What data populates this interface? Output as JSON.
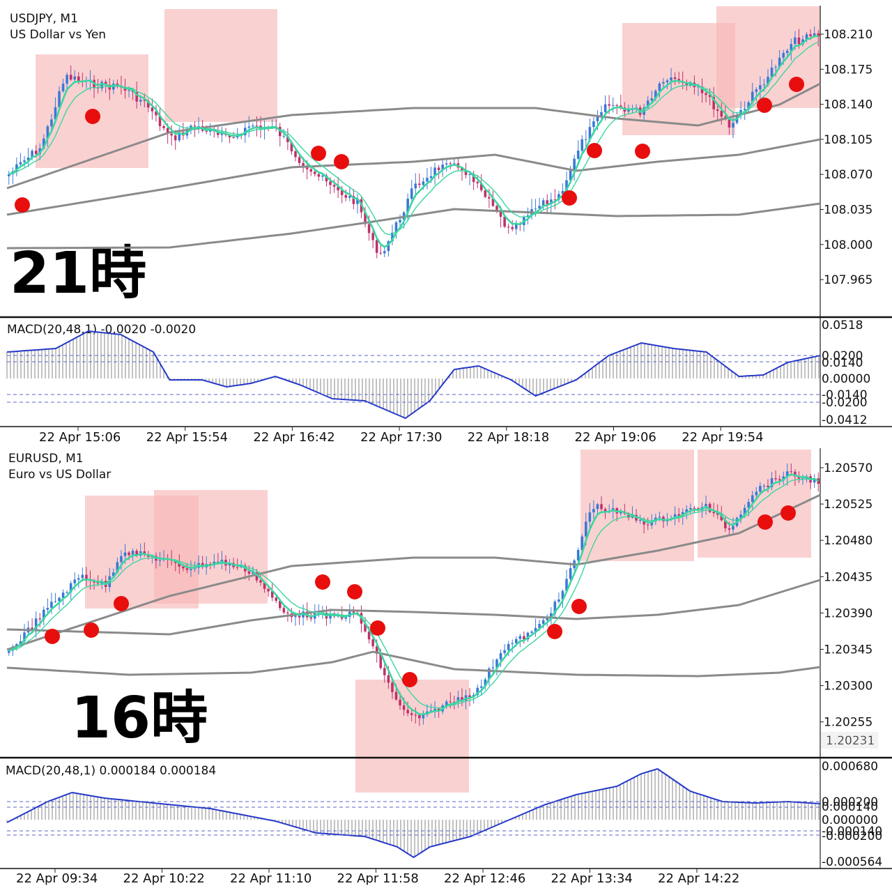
{
  "chart_data": [
    {
      "type": "candlestick",
      "symbol": "USDJPY, M1",
      "description": "US Dollar vs Yen",
      "overlay_text": "21時",
      "price_ticks": [
        "108.210",
        "108.175",
        "108.140",
        "108.105",
        "108.070",
        "108.035",
        "108.000",
        "107.965"
      ],
      "price_range": [
        107.94,
        108.24
      ],
      "macd": {
        "label": "MACD(20,48,1) -0.0020 -0.0020",
        "ticks": [
          "0.0518",
          "0.0200",
          "0.0140",
          "0.00000",
          "-0.0140",
          "-0.0200",
          "-0.0412"
        ],
        "range": [
          -0.0412,
          0.0518
        ]
      },
      "time_labels": [
        "22 Apr 15:06",
        "22 Apr 15:54",
        "22 Apr 16:42",
        "22 Apr 17:30",
        "22 Apr 18:18",
        "22 Apr 19:06",
        "22 Apr 19:54"
      ]
    },
    {
      "type": "candlestick",
      "symbol": "EURUSD, M1",
      "description": "Euro vs US Dollar",
      "overlay_text": "16時",
      "price_ticks": [
        "1.20570",
        "1.20525",
        "1.20480",
        "1.20435",
        "1.20390",
        "1.20345",
        "1.20300",
        "1.20255"
      ],
      "current_price": "1.20231",
      "price_range": [
        1.20205,
        1.20615
      ],
      "macd": {
        "label": "MACD(20,48,1) 0.000184 0.000184",
        "ticks": [
          "0.000680",
          "0.000200",
          "0.000140",
          "0.000000",
          "-0.000140",
          "-0.000200",
          "-0.000564"
        ],
        "range": [
          -0.000564,
          0.00068
        ]
      },
      "time_labels": [
        "22 Apr 09:34",
        "22 Apr 10:22",
        "22 Apr 11:10",
        "22 Apr 11:58",
        "22 Apr 12:46",
        "22 Apr 13:34",
        "22 Apr 14:22"
      ]
    }
  ],
  "colors": {
    "bull": "#3a78d6",
    "bear": "#c0306a",
    "ma": "#3ad6a0",
    "band": "#8a8a8a",
    "macd_line": "#2438c8",
    "highlight": "#f7b4b4",
    "marker": "#e80e0e"
  }
}
